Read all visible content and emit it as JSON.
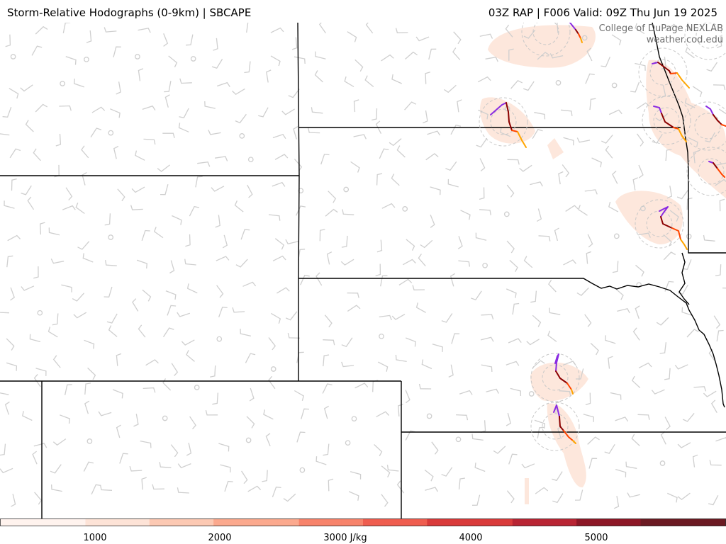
{
  "header": {
    "title_left": "Storm-Relative Hodographs (0-9km) | SBCAPE",
    "title_right": "03Z RAP | F006 Valid: 09Z Thu Jun 19 2025"
  },
  "credit": {
    "line1": "College of DuPage NEXLAB",
    "line2": "weather.cod.edu"
  },
  "colorbar": {
    "ticks": [
      "1000",
      "2000",
      "3000 J/kg",
      "4000",
      "5000"
    ],
    "tick_values": [
      1000,
      2000,
      3000,
      4000,
      5000
    ],
    "range": [
      0,
      6000
    ],
    "colors": [
      "#fff3ee",
      "#fde3d7",
      "#fcc9b3",
      "#fba98e",
      "#f7836b",
      "#ef5d4f",
      "#d93a3a",
      "#b82433",
      "#8d1726",
      "#6b1a22"
    ]
  },
  "colors": {
    "border": "#000000",
    "barb": "#cfcfcf",
    "hodo_ring": "#c8c8c8",
    "hodo_low": "#8a2be2",
    "hodo_mid": "#8b0000",
    "hodo_midhigh": "#ff4500",
    "hodo_high": "#ffa500",
    "cape_shade": "#fde7dc"
  }
}
